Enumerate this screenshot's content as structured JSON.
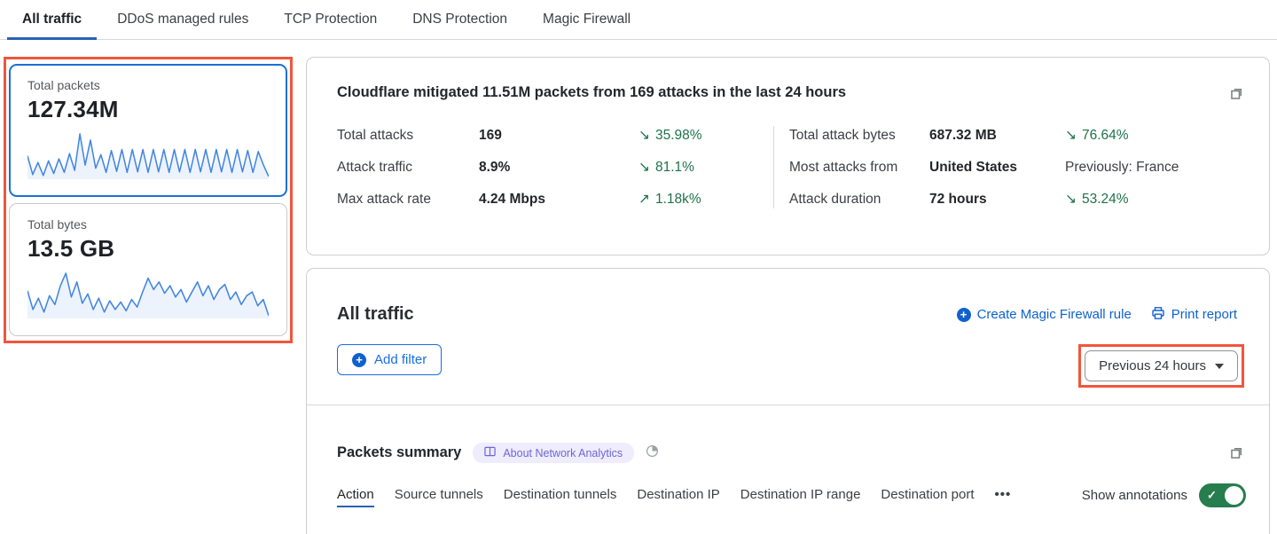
{
  "colors": {
    "accent_blue": "#0f62cd",
    "tab_underline_blue": "#2762b5",
    "selected_card_border": "#1a6fd8",
    "annotation_orange": "#f0563c",
    "delta_green": "#1e724a",
    "toggle_green": "#267d4d",
    "badge_text_purple": "#6c67d9",
    "badge_bg_purple": "#efecfd",
    "sparkline_blue": "#4486e0"
  },
  "tabs": {
    "items": [
      {
        "label": "All traffic",
        "active": true
      },
      {
        "label": "DDoS managed rules",
        "active": false
      },
      {
        "label": "TCP Protection",
        "active": false
      },
      {
        "label": "DNS Protection",
        "active": false
      },
      {
        "label": "Magic Firewall",
        "active": false
      }
    ]
  },
  "sidebar": {
    "packets_card": {
      "label": "Total packets",
      "value": "127.34M"
    },
    "bytes_card": {
      "label": "Total bytes",
      "value": "13.5 GB"
    }
  },
  "summary": {
    "title": "Cloudflare mitigated 11.51M packets from 169 attacks in the last 24 hours",
    "stats_left": [
      {
        "label": "Total attacks",
        "value": "169",
        "arrow": "↘",
        "delta": "35.98%"
      },
      {
        "label": "Attack traffic",
        "value": "8.9%",
        "arrow": "↘",
        "delta": "81.1%"
      },
      {
        "label": "Max attack rate",
        "value": "4.24 Mbps",
        "arrow": "↗",
        "delta": "1.18k%"
      }
    ],
    "stats_right": [
      {
        "label": "Total attack bytes",
        "value": "687.32 MB",
        "arrow": "↘",
        "delta": "76.64%"
      },
      {
        "label": "Most attacks from",
        "value": "United States",
        "arrow": "",
        "delta": "Previously: France"
      },
      {
        "label": "Attack duration",
        "value": "72 hours",
        "arrow": "↘",
        "delta": "53.24%"
      }
    ]
  },
  "traffic": {
    "title": "All traffic",
    "create_rule_label": "Create Magic Firewall rule",
    "print_report_label": "Print report",
    "add_filter_label": "Add filter",
    "time_range_value": "Previous 24 hours"
  },
  "packets_summary": {
    "title": "Packets summary",
    "badge_label": "About Network Analytics",
    "subtabs": [
      {
        "label": "Action",
        "active": true
      },
      {
        "label": "Source tunnels",
        "active": false
      },
      {
        "label": "Destination tunnels",
        "active": false
      },
      {
        "label": "Destination IP",
        "active": false
      },
      {
        "label": "Destination IP range",
        "active": false
      },
      {
        "label": "Destination port",
        "active": false
      }
    ],
    "more_label": "•••",
    "show_annotations_label": "Show annotations",
    "annotations_on": true
  },
  "chart_data": [
    {
      "type": "area",
      "name": "total-packets-sparkline",
      "title": "Total packets over last 24 hours (sparkline, unlabeled axes)",
      "values": [
        58,
        22,
        45,
        20,
        48,
        24,
        52,
        26,
        62,
        30,
        100,
        40,
        88,
        34,
        60,
        26,
        68,
        28,
        70,
        26,
        70,
        27,
        70,
        26,
        70,
        27,
        70,
        26,
        70,
        27,
        70,
        26,
        70,
        27,
        70,
        26,
        70,
        27,
        70,
        26,
        70,
        27,
        68,
        26,
        66,
        40,
        18
      ]
    },
    {
      "type": "area",
      "name": "total-bytes-sparkline",
      "title": "Total bytes over last 24 hours (sparkline, unlabeled axes)",
      "values": [
        60,
        30,
        48,
        26,
        52,
        38,
        68,
        88,
        50,
        74,
        40,
        55,
        30,
        48,
        26,
        44,
        30,
        42,
        28,
        46,
        34,
        58,
        80,
        62,
        74,
        56,
        68,
        50,
        62,
        42,
        58,
        74,
        52,
        68,
        46,
        62,
        70,
        46,
        58,
        38,
        52,
        58,
        36,
        46,
        20
      ]
    }
  ]
}
